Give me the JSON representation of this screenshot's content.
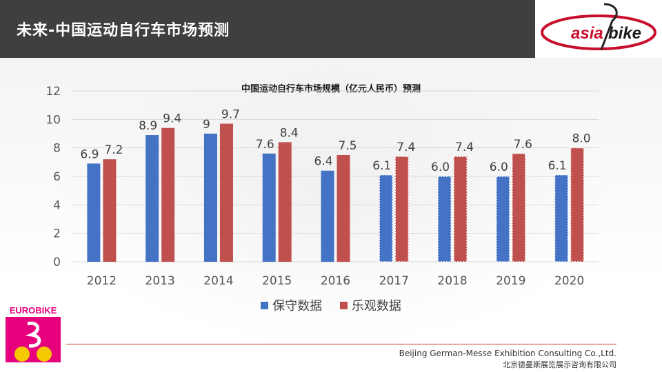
{
  "header": {
    "title": "未来-中国运动自行车市场预测"
  },
  "logos": {
    "asiabike_text_left": "asia",
    "asiabike_text_right": "bike",
    "eurobike_text": "EUROBIKE"
  },
  "colors": {
    "series_conservative": "#4472c4",
    "series_optimistic": "#c0504d",
    "header_bg": "#3f3f3f",
    "logo_red": "#c8102e",
    "eurobike_magenta": "#e6007e",
    "eurobike_yellow": "#f5c800"
  },
  "chart_data": {
    "type": "bar",
    "title": "中国运动自行车市场规模（亿元人民币）预测",
    "categories": [
      "2012",
      "2013",
      "2014",
      "2015",
      "2016",
      "2017",
      "2018",
      "2019",
      "2020"
    ],
    "series": [
      {
        "name": "保守数据",
        "values": [
          6.9,
          8.9,
          9,
          7.6,
          6.4,
          6.1,
          6.0,
          6.0,
          6.1
        ],
        "labels": [
          "6.9",
          "8.9",
          "9",
          "7.6",
          "6.4",
          "6.1",
          "6.0",
          "6.0",
          "6.1"
        ]
      },
      {
        "name": "乐观数据",
        "values": [
          7.2,
          9.4,
          9.7,
          8.4,
          7.5,
          7.4,
          7.4,
          7.6,
          8.0
        ],
        "labels": [
          "7.2",
          "9.4",
          "9.7",
          "8.4",
          "7.5",
          "7.4",
          "7.4",
          "7.6",
          "8.0"
        ]
      }
    ],
    "forecast_from": "2017",
    "ylim": [
      0,
      12
    ],
    "yticks": [
      0,
      2,
      4,
      6,
      8,
      10,
      12
    ],
    "grid": true,
    "legend_position": "bottom-center",
    "xlabel": "",
    "ylabel": ""
  },
  "footer": {
    "company_en": "Beijing German-Messe Exhibition Consulting Co.,Ltd.",
    "company_cn": "北京德曼斯展览展示咨询有限公司"
  }
}
